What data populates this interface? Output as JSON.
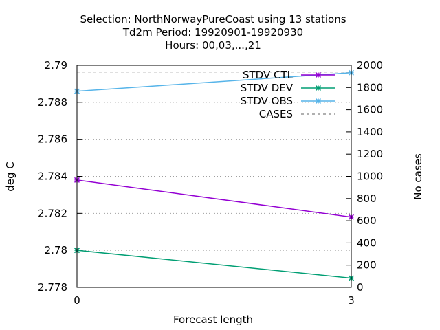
{
  "chart_data": {
    "type": "line",
    "title_lines": [
      "Selection: NorthNorwayPureCoast using    13 stations",
      "Td2m   Period: 19920901-19920930",
      "Hours:  00,03,...,21"
    ],
    "xlabel": "Forecast length",
    "ylabel": "deg C",
    "y2label": "No cases",
    "x": [
      0,
      3
    ],
    "xticks": [
      "0",
      "3"
    ],
    "xlim": [
      0,
      3
    ],
    "ylim": [
      2.778,
      2.79
    ],
    "yticks": [
      "2.778",
      "2.78",
      "2.782",
      "2.784",
      "2.786",
      "2.788",
      "2.79"
    ],
    "y2lim": [
      0,
      2000
    ],
    "y2ticks": [
      "0",
      "200",
      "400",
      "600",
      "800",
      "1000",
      "1200",
      "1400",
      "1600",
      "1800",
      "2000"
    ],
    "grid": true,
    "legend_position": "top-right",
    "series": [
      {
        "name": "STDV CTL",
        "axis": "y",
        "values": [
          2.7838,
          2.7818
        ],
        "color": "#9400d3",
        "style": "solid",
        "marker": "x"
      },
      {
        "name": "STDV DEV",
        "axis": "y",
        "values": [
          2.78,
          2.7785
        ],
        "color": "#009e73",
        "style": "solid",
        "marker": "x"
      },
      {
        "name": "STDV OBS",
        "axis": "y",
        "values": [
          2.7886,
          2.7896
        ],
        "color": "#56b4e9",
        "style": "solid",
        "marker": "x"
      },
      {
        "name": "CASES",
        "axis": "y2",
        "values": [
          1940,
          1940
        ],
        "color": "#808080",
        "style": "dashed",
        "marker": "none"
      }
    ]
  }
}
